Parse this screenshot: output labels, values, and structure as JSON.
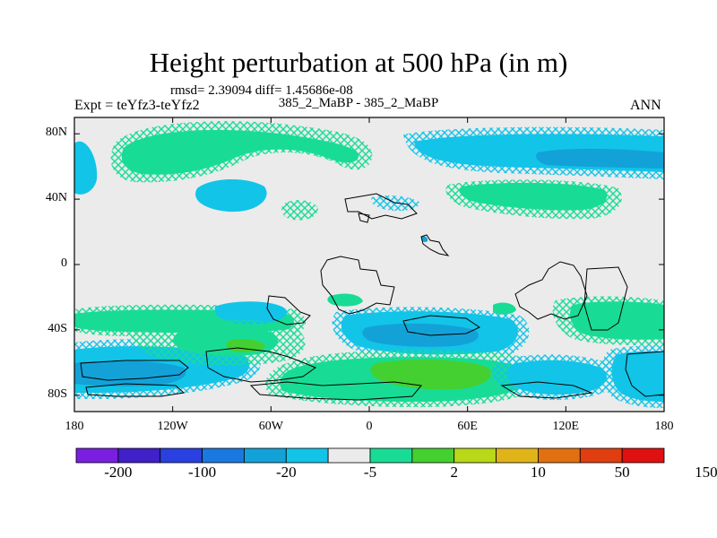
{
  "header": {
    "title": "Height perturbation at 500 hPa (in m)",
    "stats": "rmsd= 2.39094 diff= 1.45686e-08",
    "cases": "385_2_MaBP - 385_2_MaBP",
    "expt": "Expt = teYfz3-teYfz2",
    "season": "ANN"
  },
  "axes": {
    "lat_labels": [
      "80N",
      "40N",
      "0",
      "40S",
      "80S"
    ],
    "lat_values": [
      80,
      40,
      0,
      -40,
      -80
    ],
    "lon_labels": [
      "180",
      "120W",
      "60W",
      "0",
      "60E",
      "120E",
      "180"
    ],
    "lon_values": [
      -180,
      -120,
      -60,
      0,
      60,
      120,
      180
    ],
    "lat_range": [
      -90,
      90
    ],
    "lon_range": [
      -180,
      180
    ]
  },
  "colorbar": {
    "colors": [
      "#7a1fe0",
      "#4020c8",
      "#2a40e0",
      "#1a78e0",
      "#12a2d8",
      "#12c4e8",
      "#ebebeb",
      "#18dc96",
      "#44d030",
      "#b8d818",
      "#e0b418",
      "#e27010",
      "#e03e10",
      "#e01010"
    ],
    "labels": [
      "-200",
      "-100",
      "-20",
      "-5",
      "2",
      "10",
      "50",
      "150"
    ]
  },
  "map_colors": {
    "background": "#ebebeb",
    "neg_light": "#12c4e8",
    "neg_mid": "#12a2d8",
    "neg_dark": "#1a78e0",
    "pos_light": "#18dc96",
    "pos_mid": "#44d030",
    "coast": "#000000"
  }
}
